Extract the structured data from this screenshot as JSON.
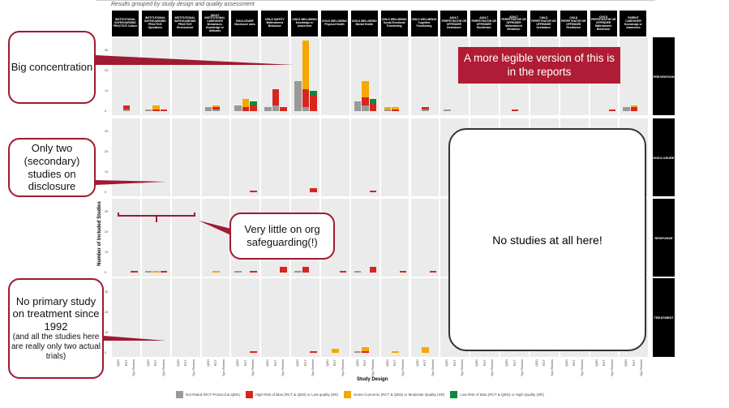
{
  "subtitle": "Results grouped by study design and quality assessment",
  "columns": [
    "INSTITUTIONAL SAFEGUARDING PRACTICE Culture",
    "INSTITUTIONAL SAFEGUARDING PRACTICE Operations",
    "INSTITUTIONAL SAFEGUARDING PRACTICE Environment",
    "ADULT INSTITUTIONAL CAREGIVER Behaviours, Knowledge or Attitudes",
    "DISCLOSURE Disclosure rates",
    "CHILD SAFETY Maltreatment Behaviour",
    "CHILD WELLBEING Knowledge or Awareness",
    "CHILD WELLBEING Physical Health",
    "CHILD WELLBEING Mental Health",
    "CHILD WELLBEING Social-Emotional Functioning",
    "CHILD WELLBEING Cognitive Functioning",
    "ADULT PERPETRATOR OR OFFENDER Desistance",
    "ADULT PERPETRATOR OR OFFENDER Recidivism",
    "ADULT PERPETRATOR OR OFFENDER Maltreatment Behaviour",
    "CHILD PERPETRATOR OR OFFENDER Desistance",
    "CHILD PERPETRATOR OR OFFENDER Recidivism",
    "CHILD PERPETRATOR OR OFFENDER Maltreatment Behaviour",
    "PARENT CAREGIVER Knowledge or Awareness"
  ],
  "rows": [
    "PREVENTION",
    "DISCLOSURE",
    "RESPONSE",
    "TREATMENT"
  ],
  "designs": [
    "QED",
    "RCT",
    "Sys Review"
  ],
  "y_ticks": [
    "0",
    "10",
    "20",
    "30"
  ],
  "ylabel": "Number of Included Studies",
  "xlabel": "Study Design",
  "legend": [
    {
      "label": "Not Rated (RCT Protocol & QED)",
      "color": "#999999"
    },
    {
      "label": "High Risk of Bias (RCT & QED) or Low quality (SR)",
      "color": "#d7261e"
    },
    {
      "label": "Some Concerns (RCT & QED) or Moderate Quality (SR)",
      "color": "#f5a800"
    },
    {
      "label": "Low Risk of Bias (RCT & QED) or High Quality (SR)",
      "color": "#0a8a3a"
    }
  ],
  "chart_data": {
    "type": "bar",
    "stacked": true,
    "ylim": [
      0,
      35
    ],
    "note": "bars[row][column][design] = [not_rated, high_risk, some_concerns, low_risk]",
    "bars": {
      "PREVENTION": {
        "0": {
          "1": [
            1,
            2,
            0,
            0
          ]
        },
        "1": {
          "0": [
            1,
            0,
            0,
            0
          ],
          "1": [
            0,
            1,
            2,
            0
          ],
          "2": [
            0,
            1,
            0,
            0
          ]
        },
        "3": {
          "0": [
            2,
            0,
            0,
            0
          ],
          "1": [
            1,
            1,
            1,
            0
          ]
        },
        "4": {
          "0": [
            3,
            0,
            0,
            0
          ],
          "1": [
            0,
            2,
            4,
            0
          ],
          "2": [
            0,
            3,
            0,
            2
          ]
        },
        "5": {
          "0": [
            2,
            0,
            0,
            0
          ],
          "1": [
            3,
            8,
            0,
            0
          ],
          "2": [
            0,
            2,
            0,
            0
          ]
        },
        "6": {
          "0": [
            15,
            0,
            0,
            0
          ],
          "1": [
            2,
            9,
            24,
            0
          ],
          "2": [
            0,
            8,
            0,
            2
          ]
        },
        "8": {
          "0": [
            5,
            0,
            0,
            0
          ],
          "1": [
            3,
            4,
            8,
            0
          ],
          "2": [
            0,
            4,
            0,
            2
          ]
        },
        "9": {
          "0": [
            1,
            0,
            1,
            0
          ],
          "1": [
            0,
            1,
            1,
            0
          ]
        },
        "10": {
          "1": [
            1,
            1,
            0,
            0
          ]
        },
        "11": {
          "0": [
            1,
            0,
            0,
            0
          ]
        },
        "13": {
          "1": [
            0,
            1,
            0,
            0
          ]
        },
        "16": {
          "2": [
            0,
            1,
            0,
            0
          ]
        },
        "17": {
          "0": [
            2,
            0,
            0,
            0
          ],
          "1": [
            0,
            2,
            1,
            0
          ]
        }
      },
      "DISCLOSURE": {
        "4": {
          "2": [
            0,
            1,
            0,
            0
          ]
        },
        "6": {
          "2": [
            0,
            2,
            0,
            0
          ]
        },
        "8": {
          "2": [
            0,
            1,
            0,
            0
          ]
        }
      },
      "RESPONSE": {
        "0": {
          "2": [
            0,
            1,
            0,
            0
          ]
        },
        "1": {
          "0": [
            1,
            0,
            0,
            0
          ],
          "1": [
            0,
            0,
            1,
            0
          ],
          "2": [
            0,
            1,
            0,
            0
          ]
        },
        "3": {
          "1": [
            0,
            0,
            1,
            0
          ]
        },
        "4": {
          "0": [
            1,
            0,
            0,
            0
          ],
          "2": [
            0,
            1,
            0,
            0
          ]
        },
        "5": {
          "2": [
            0,
            3,
            0,
            0
          ]
        },
        "6": {
          "0": [
            1,
            0,
            0,
            0
          ],
          "1": [
            0,
            3,
            0,
            0
          ]
        },
        "7": {
          "2": [
            0,
            1,
            0,
            0
          ]
        },
        "8": {
          "0": [
            1,
            0,
            0,
            0
          ],
          "2": [
            0,
            3,
            0,
            0
          ]
        },
        "9": {
          "2": [
            0,
            1,
            0,
            0
          ]
        },
        "10": {
          "2": [
            0,
            1,
            0,
            0
          ]
        }
      },
      "TREATMENT": {
        "4": {
          "2": [
            0,
            1,
            0,
            0
          ]
        },
        "6": {
          "2": [
            0,
            1,
            0,
            0
          ]
        },
        "7": {
          "1": [
            0,
            0,
            2,
            0
          ]
        },
        "8": {
          "0": [
            1,
            0,
            0,
            0
          ],
          "1": [
            0,
            1,
            2,
            0
          ]
        },
        "9": {
          "1": [
            0,
            0,
            1,
            0
          ]
        },
        "10": {
          "1": [
            0,
            0,
            3,
            0
          ]
        }
      }
    }
  },
  "annotations": {
    "big": "Big concentration",
    "disclosure": "Only two (secondary) studies on disclosure",
    "org": "Very little on org safeguarding(!)",
    "treatment": "No primary study on treatment since 1992",
    "treatment_note": "(and all the studies here are really only two actual trials)",
    "banner": "A more legible version of this is in the reports",
    "none": "No studies at all here!"
  }
}
